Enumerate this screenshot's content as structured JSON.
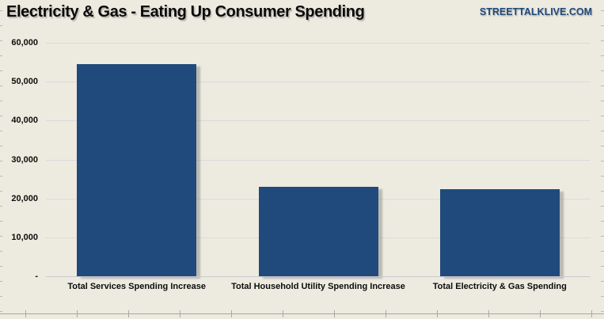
{
  "header": {
    "title": "Electricity & Gas - Eating Up Consumer Spending",
    "brand": "STREETTALKLIVE.COM"
  },
  "colors": {
    "background": "#EDEBE0",
    "bar": "#204A7C",
    "gridline": "#D9D9DE",
    "axis_line": "#C9C9CE",
    "title_text": "#0A0A0A",
    "brand_text": "#1F497D"
  },
  "chart_data": {
    "type": "bar",
    "title": "Electricity & Gas - Eating Up Consumer Spending",
    "categories": [
      "Total Services Spending Increase",
      "Total Household Utility Spending Increase",
      "Total Electricity & Gas Spending"
    ],
    "values": [
      54600,
      22900,
      22400
    ],
    "xlabel": "",
    "ylabel": "",
    "ylim": [
      0,
      60000
    ],
    "y_ticks": [
      {
        "value": 0,
        "label": "-"
      },
      {
        "value": 10000,
        "label": "10,000"
      },
      {
        "value": 20000,
        "label": "20,000"
      },
      {
        "value": 30000,
        "label": "30,000"
      },
      {
        "value": 40000,
        "label": "40,000"
      },
      {
        "value": 50000,
        "label": "50,000"
      },
      {
        "value": 60000,
        "label": "60,000"
      }
    ],
    "grid": "horizontal",
    "legend_position": "none",
    "bar_color": "#204A7C"
  }
}
